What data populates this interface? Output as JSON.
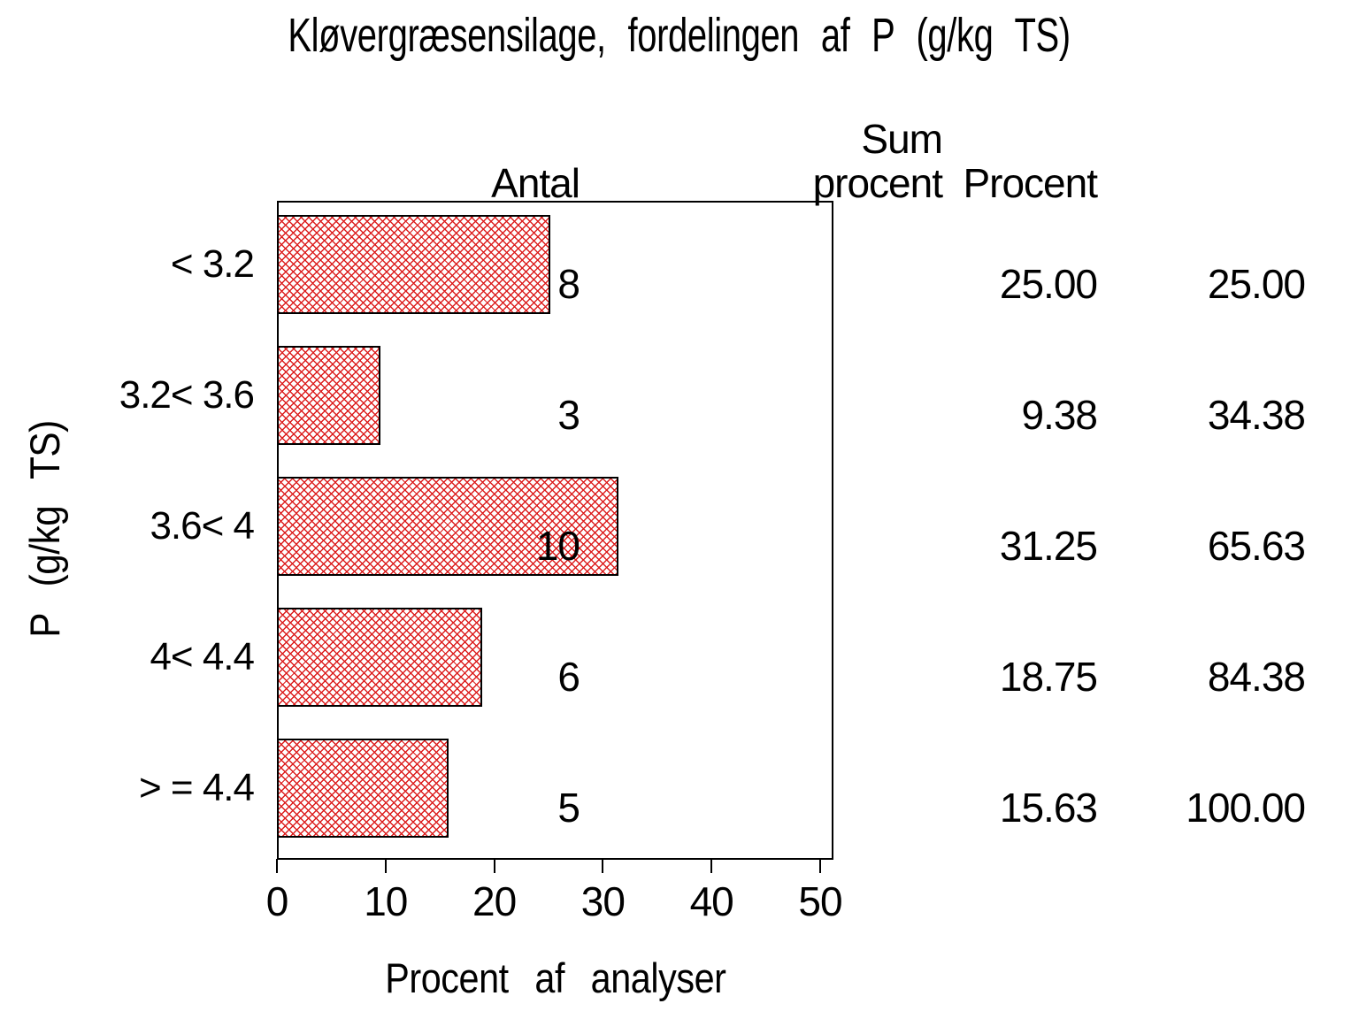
{
  "title": "Kløvergræsensilage, fordelingen af P (g/kg TS)",
  "chart_data": {
    "type": "bar",
    "orientation": "horizontal",
    "title": "Kløvergræsensilage, fordelingen af P (g/kg TS)",
    "categories": [
      "< 3.2",
      "3.2< 3.6",
      "3.6< 4",
      "4< 4.4",
      "> = 4.4"
    ],
    "values": [
      25.0,
      9.38,
      31.25,
      18.75,
      15.63
    ],
    "counts": [
      8,
      3,
      10,
      6,
      5
    ],
    "cum_percent": [
      25.0,
      34.38,
      65.63,
      84.38,
      100.0
    ],
    "xlabel": "Procent af analyser",
    "ylabel": "P (g/kg TS)",
    "xlim": [
      0,
      50
    ],
    "xticks": [
      0,
      10,
      20,
      30,
      40,
      50
    ],
    "grid": false,
    "legend": "none",
    "bar_hatch": "diagonal-crosshatch",
    "bar_hatch_color": "#dc1e1e",
    "bar_border_color": "#000000",
    "axis_color": "#000000"
  },
  "table": {
    "headers": {
      "antal": "Antal",
      "procent": "Procent",
      "sum_line1": "Sum",
      "sum_line2": "procent"
    },
    "rows": [
      {
        "antal": "8",
        "procent": "25.00",
        "sum": "25.00"
      },
      {
        "antal": "3",
        "procent": "9.38",
        "sum": "34.38"
      },
      {
        "antal": "10",
        "procent": "31.25",
        "sum": "65.63"
      },
      {
        "antal": "6",
        "procent": "18.75",
        "sum": "84.38"
      },
      {
        "antal": "5",
        "procent": "15.63",
        "sum": "100.00"
      }
    ]
  }
}
